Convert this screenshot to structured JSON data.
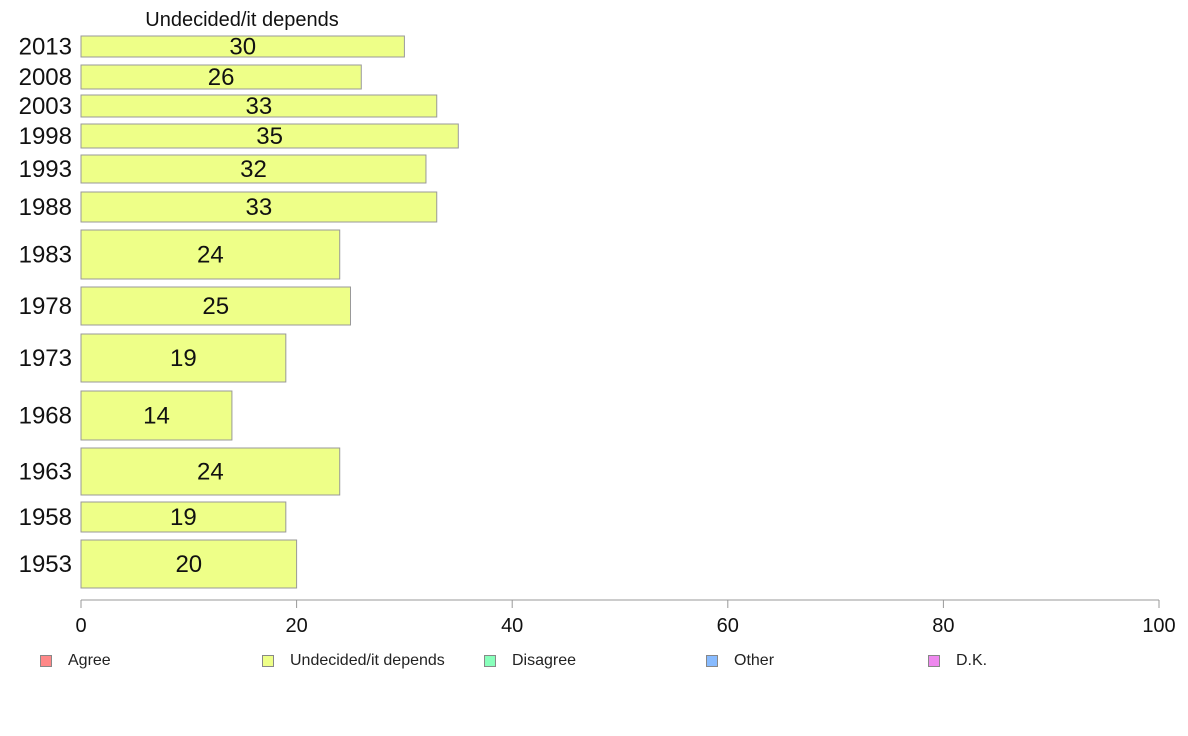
{
  "chart_data": {
    "type": "bar",
    "orientation": "horizontal",
    "title": "Undecided/it depends",
    "xlabel": "",
    "ylabel": "",
    "xlim": [
      0,
      100
    ],
    "x_ticks": [
      "0",
      "20",
      "40",
      "60",
      "80",
      "100"
    ],
    "categories": [
      "2013",
      "2008",
      "2003",
      "1998",
      "1993",
      "1988",
      "1983",
      "1978",
      "1973",
      "1968",
      "1963",
      "1958",
      "1953"
    ],
    "series": [
      {
        "name": "Undecided/it depends",
        "color": "#eeff88",
        "values": [
          30,
          26,
          33,
          35,
          32,
          33,
          24,
          25,
          19,
          14,
          24,
          19,
          20
        ]
      }
    ],
    "legend_position": "bottom",
    "legend": [
      {
        "label": "Agree",
        "color": "#ff8888"
      },
      {
        "label": "Undecided/it depends",
        "color": "#eeff88"
      },
      {
        "label": "Disagree",
        "color": "#88ffbb"
      },
      {
        "label": "Other",
        "color": "#88bbff"
      },
      {
        "label": "D.K.",
        "color": "#ee88ee"
      }
    ]
  }
}
